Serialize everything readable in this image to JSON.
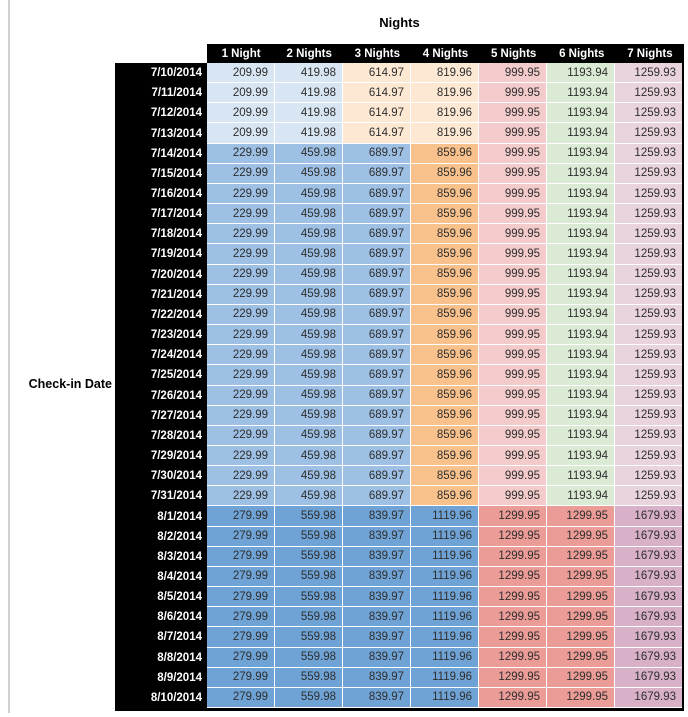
{
  "page": {
    "background": "#ffffff",
    "edge_line_color": "#d0d0d0"
  },
  "chart_data": {
    "type": "table",
    "title": "Nights",
    "row_axis_label": "Check-in Date",
    "column_headers": [
      "1 Night",
      "2 Nights",
      "3 Nights",
      "4 Nights",
      "5 Nights",
      "6 Nights",
      "7 Nights"
    ],
    "style": {
      "header_bg": "#000000",
      "header_text": "#ffffff",
      "date_bg": "#000000",
      "date_text": "#ffffff",
      "value_text": "#2e2e2e",
      "gridline": "#ffffff"
    },
    "groups": [
      {
        "dates": [
          "7/10/2014",
          "7/11/2014",
          "7/12/2014",
          "7/13/2014"
        ],
        "values": [
          "209.99",
          "419.98",
          "614.97",
          "819.96",
          "999.95",
          "1193.94",
          "1259.93"
        ],
        "cell_colors": [
          "#d8e5f2",
          "#d8e5f2",
          "#fde8d4",
          "#fde8d4",
          "#f3cbca",
          "#dbead4",
          "#e9d3dd"
        ]
      },
      {
        "dates": [
          "7/14/2014",
          "7/15/2014",
          "7/16/2014",
          "7/17/2014",
          "7/18/2014",
          "7/19/2014",
          "7/20/2014",
          "7/21/2014",
          "7/22/2014",
          "7/23/2014",
          "7/24/2014",
          "7/25/2014",
          "7/26/2014",
          "7/27/2014",
          "7/28/2014",
          "7/29/2014",
          "7/30/2014",
          "7/31/2014"
        ],
        "values": [
          "229.99",
          "459.98",
          "689.97",
          "859.96",
          "999.95",
          "1193.94",
          "1259.93"
        ],
        "cell_colors": [
          "#9dc0e4",
          "#9dc0e4",
          "#9dc0e4",
          "#f9c28c",
          "#f3cbca",
          "#dbead4",
          "#e9d3dd"
        ]
      },
      {
        "dates": [
          "8/1/2014",
          "8/2/2014",
          "8/3/2014",
          "8/4/2014",
          "8/5/2014",
          "8/6/2014",
          "8/7/2014",
          "8/8/2014",
          "8/9/2014",
          "8/10/2014"
        ],
        "values": [
          "279.99",
          "559.98",
          "839.97",
          "1119.96",
          "1299.95",
          "1299.95",
          "1679.93"
        ],
        "cell_colors": [
          "#6fa3d6",
          "#6fa3d6",
          "#6fa3d6",
          "#6fa3d6",
          "#ec9c97",
          "#ec9c97",
          "#d8b0c8"
        ]
      }
    ]
  }
}
